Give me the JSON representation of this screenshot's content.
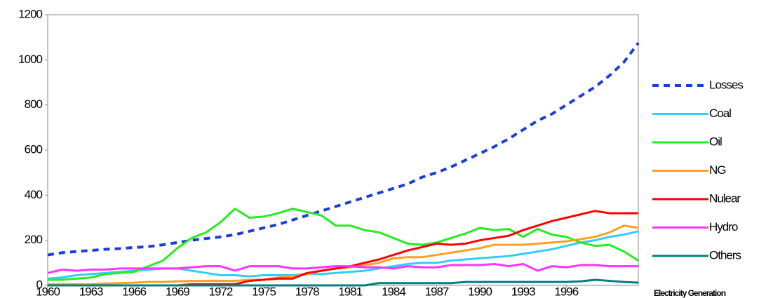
{
  "chart_data": {
    "type": "line",
    "x_label": "Electricity Generation",
    "x": [
      1960,
      1961,
      1962,
      1963,
      1964,
      1965,
      1966,
      1967,
      1968,
      1969,
      1970,
      1971,
      1972,
      1973,
      1974,
      1975,
      1976,
      1977,
      1978,
      1979,
      1980,
      1981,
      1982,
      1983,
      1984,
      1985,
      1986,
      1987,
      1988,
      1989,
      1990,
      1991,
      1992,
      1993,
      1994,
      1995,
      1996,
      1997,
      1998,
      1999,
      2000,
      2001
    ],
    "xlim": [
      1960,
      2001
    ],
    "xticks": [
      1960,
      1963,
      1966,
      1969,
      1972,
      1975,
      1978,
      1981,
      1984,
      1987,
      1990,
      1993,
      1996
    ],
    "ylim": [
      0,
      1200
    ],
    "yticks": [
      0,
      200,
      400,
      600,
      800,
      1000,
      1200
    ],
    "grid": false,
    "legend": "right",
    "series": [
      {
        "name": "Losses",
        "color": "#1a3fd6",
        "dash": true,
        "values": [
          135,
          145,
          150,
          155,
          160,
          163,
          168,
          172,
          180,
          190,
          200,
          208,
          215,
          225,
          240,
          255,
          270,
          290,
          310,
          330,
          350,
          370,
          390,
          410,
          430,
          450,
          480,
          500,
          525,
          555,
          585,
          615,
          650,
          690,
          730,
          760,
          800,
          840,
          880,
          930,
          990,
          1075
        ]
      },
      {
        "name": "Coal",
        "color": "#33ccff",
        "values": [
          30,
          35,
          45,
          50,
          55,
          60,
          65,
          70,
          75,
          75,
          65,
          55,
          45,
          45,
          40,
          45,
          45,
          45,
          50,
          50,
          55,
          60,
          65,
          75,
          85,
          95,
          100,
          100,
          110,
          115,
          120,
          125,
          130,
          140,
          150,
          160,
          175,
          190,
          200,
          215,
          225,
          240
        ]
      },
      {
        "name": "Oil",
        "color": "#22ee22",
        "values": [
          25,
          25,
          30,
          35,
          50,
          55,
          60,
          85,
          110,
          165,
          210,
          235,
          280,
          340,
          300,
          305,
          320,
          340,
          325,
          310,
          265,
          265,
          245,
          235,
          210,
          185,
          180,
          190,
          210,
          230,
          255,
          245,
          250,
          215,
          250,
          225,
          215,
          190,
          175,
          180,
          150,
          110
        ]
      },
      {
        "name": "NG",
        "color": "#ffa020",
        "values": [
          5,
          5,
          5,
          5,
          8,
          10,
          12,
          15,
          15,
          18,
          20,
          20,
          20,
          20,
          25,
          25,
          35,
          40,
          50,
          65,
          75,
          80,
          90,
          100,
          120,
          125,
          125,
          135,
          145,
          155,
          165,
          180,
          180,
          180,
          185,
          190,
          195,
          205,
          215,
          235,
          265,
          255
        ]
      },
      {
        "name": "Nulear",
        "color": "#ff0000",
        "values": [
          0,
          0,
          0,
          0,
          0,
          0,
          0,
          0,
          0,
          0,
          5,
          5,
          5,
          5,
          20,
          25,
          30,
          30,
          55,
          65,
          75,
          85,
          100,
          115,
          135,
          155,
          170,
          185,
          180,
          185,
          200,
          210,
          220,
          245,
          265,
          285,
          300,
          315,
          330,
          320,
          320,
          320
        ]
      },
      {
        "name": "Hydro",
        "color": "#ff33ff",
        "values": [
          55,
          70,
          65,
          70,
          70,
          75,
          75,
          75,
          75,
          75,
          80,
          85,
          85,
          65,
          85,
          85,
          85,
          75,
          75,
          80,
          85,
          85,
          80,
          80,
          75,
          85,
          80,
          80,
          90,
          90,
          90,
          95,
          85,
          95,
          65,
          85,
          80,
          90,
          90,
          85,
          85,
          85
        ]
      },
      {
        "name": "Others",
        "color": "#008080",
        "values": [
          0,
          0,
          0,
          0,
          0,
          0,
          0,
          0,
          0,
          0,
          0,
          0,
          0,
          0,
          0,
          0,
          0,
          0,
          0,
          0,
          0,
          0,
          0,
          10,
          10,
          10,
          10,
          10,
          10,
          15,
          15,
          15,
          15,
          15,
          15,
          15,
          15,
          18,
          25,
          20,
          15,
          12
        ]
      }
    ]
  }
}
